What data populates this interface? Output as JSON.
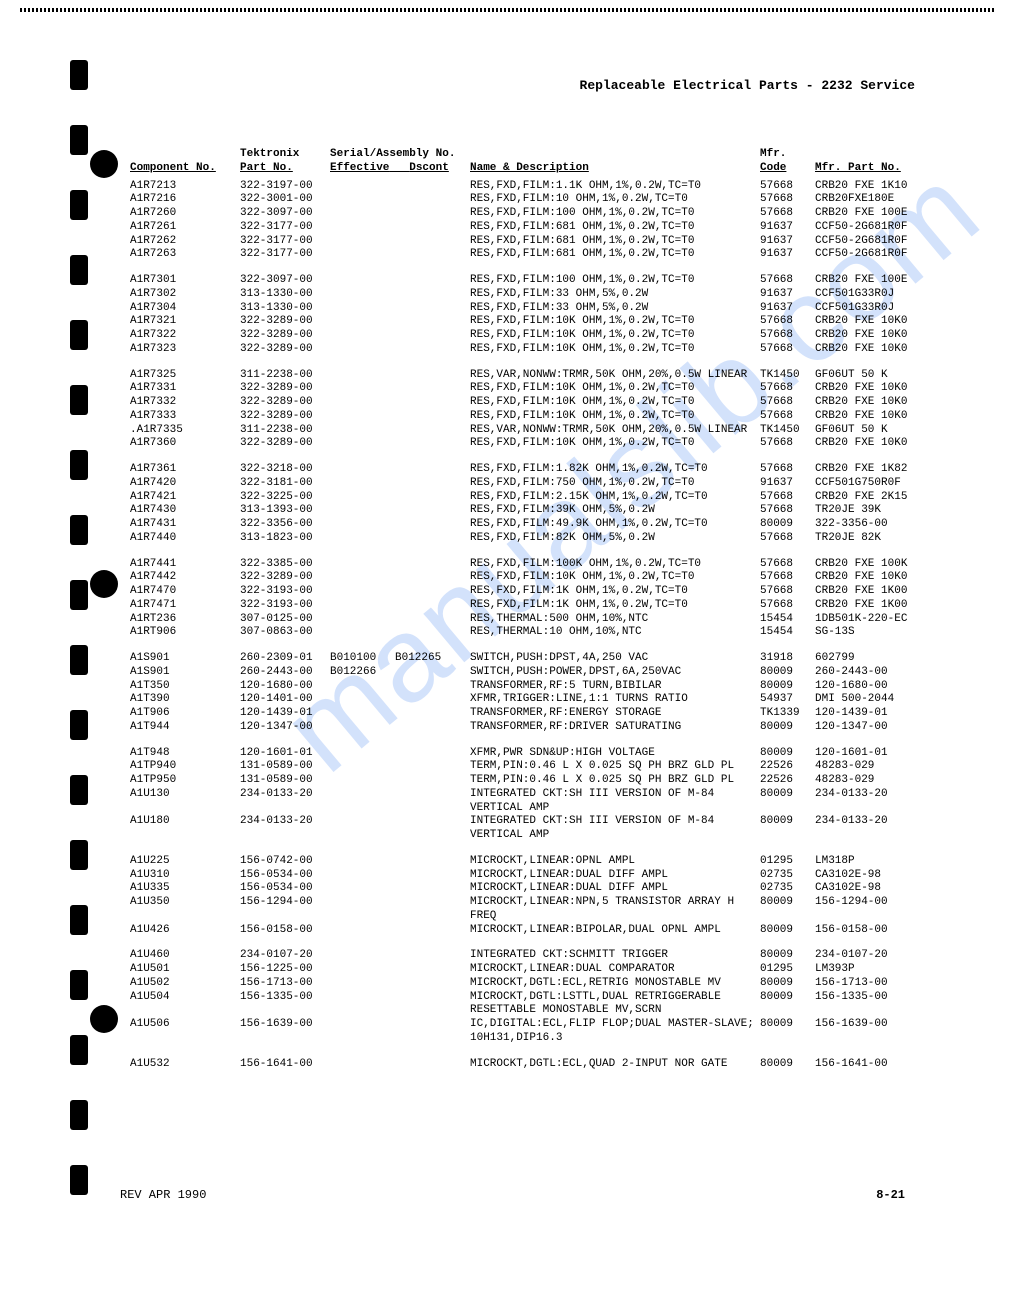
{
  "header": {
    "title": "Replaceable Electrical Parts - 2232 Service"
  },
  "columns": {
    "component": "Component No.",
    "tek_part_top": "Tektronix",
    "tek_part_bot": "Part No.",
    "serial_top": "Serial/Assembly No.",
    "serial_eff": "Effective",
    "serial_dsc": "Dscont",
    "name": "Name & Description",
    "mfr_top": "Mfr.",
    "mfr_bot": "Code",
    "mfr_part": "Mfr. Part No."
  },
  "groups": [
    [
      {
        "comp": "A1R7213",
        "part": "322-3197-00",
        "eff": "",
        "dsc": "",
        "desc": "RES,FXD,FILM:1.1K OHM,1%,0.2W,TC=T0",
        "code": "57668",
        "mpart": "CRB20 FXE 1K10"
      },
      {
        "comp": "A1R7216",
        "part": "322-3001-00",
        "eff": "",
        "dsc": "",
        "desc": "RES,FXD,FILM:10 OHM,1%,0.2W,TC=T0",
        "code": "57668",
        "mpart": "CRB20FXE180E"
      },
      {
        "comp": "A1R7260",
        "part": "322-3097-00",
        "eff": "",
        "dsc": "",
        "desc": "RES,FXD,FILM:100 OHM,1%,0.2W,TC=T0",
        "code": "57668",
        "mpart": "CRB20 FXE 100E"
      },
      {
        "comp": "A1R7261",
        "part": "322-3177-00",
        "eff": "",
        "dsc": "",
        "desc": "RES,FXD,FILM:681 OHM,1%,0.2W,TC=T0",
        "code": "91637",
        "mpart": "CCF50-2G681R0F"
      },
      {
        "comp": "A1R7262",
        "part": "322-3177-00",
        "eff": "",
        "dsc": "",
        "desc": "RES,FXD,FILM:681 OHM,1%,0.2W,TC=T0",
        "code": "91637",
        "mpart": "CCF50-2G681R0F"
      },
      {
        "comp": "A1R7263",
        "part": "322-3177-00",
        "eff": "",
        "dsc": "",
        "desc": "RES,FXD,FILM:681 OHM,1%,0.2W,TC=T0",
        "code": "91637",
        "mpart": "CCF50-2G681R0F"
      }
    ],
    [
      {
        "comp": "A1R7301",
        "part": "322-3097-00",
        "eff": "",
        "dsc": "",
        "desc": "RES,FXD,FILM:100 OHM,1%,0.2W,TC=T0",
        "code": "57668",
        "mpart": "CRB20 FXE 100E"
      },
      {
        "comp": "A1R7302",
        "part": "313-1330-00",
        "eff": "",
        "dsc": "",
        "desc": "RES,FXD,FILM:33 OHM,5%,0.2W",
        "code": "91637",
        "mpart": "CCF501G33R0J"
      },
      {
        "comp": "A1R7304",
        "part": "313-1330-00",
        "eff": "",
        "dsc": "",
        "desc": "RES,FXD,FILM:33 OHM,5%,0.2W",
        "code": "91637",
        "mpart": "CCF501G33R0J"
      },
      {
        "comp": "A1R7321",
        "part": "322-3289-00",
        "eff": "",
        "dsc": "",
        "desc": "RES,FXD,FILM:10K OHM,1%,0.2W,TC=T0",
        "code": "57668",
        "mpart": "CRB20 FXE 10K0"
      },
      {
        "comp": "A1R7322",
        "part": "322-3289-00",
        "eff": "",
        "dsc": "",
        "desc": "RES,FXD,FILM:10K OHM,1%,0.2W,TC=T0",
        "code": "57668",
        "mpart": "CRB20 FXE 10K0"
      },
      {
        "comp": "A1R7323",
        "part": "322-3289-00",
        "eff": "",
        "dsc": "",
        "desc": "RES,FXD,FILM:10K OHM,1%,0.2W,TC=T0",
        "code": "57668",
        "mpart": "CRB20 FXE 10K0"
      }
    ],
    [
      {
        "comp": "A1R7325",
        "part": "311-2238-00",
        "eff": "",
        "dsc": "",
        "desc": "RES,VAR,NONWW:TRMR,50K OHM,20%,0.5W LINEAR",
        "code": "TK1450",
        "mpart": "GF06UT 50 K"
      },
      {
        "comp": "A1R7331",
        "part": "322-3289-00",
        "eff": "",
        "dsc": "",
        "desc": "RES,FXD,FILM:10K OHM,1%,0.2W,TC=T0",
        "code": "57668",
        "mpart": "CRB20 FXE 10K0"
      },
      {
        "comp": "A1R7332",
        "part": "322-3289-00",
        "eff": "",
        "dsc": "",
        "desc": "RES,FXD,FILM:10K OHM,1%,0.2W,TC=T0",
        "code": "57668",
        "mpart": "CRB20 FXE 10K0"
      },
      {
        "comp": "A1R7333",
        "part": "322-3289-00",
        "eff": "",
        "dsc": "",
        "desc": "RES,FXD,FILM:10K OHM,1%,0.2W,TC=T0",
        "code": "57668",
        "mpart": "CRB20 FXE 10K0"
      },
      {
        "comp": ".A1R7335",
        "part": "311-2238-00",
        "eff": "",
        "dsc": "",
        "desc": "RES,VAR,NONWW:TRMR,50K OHM,20%,0.5W LINEAR",
        "code": "TK1450",
        "mpart": "GF06UT 50 K"
      },
      {
        "comp": "A1R7360",
        "part": "322-3289-00",
        "eff": "",
        "dsc": "",
        "desc": "RES,FXD,FILM:10K OHM,1%,0.2W,TC=T0",
        "code": "57668",
        "mpart": "CRB20 FXE 10K0"
      }
    ],
    [
      {
        "comp": "A1R7361",
        "part": "322-3218-00",
        "eff": "",
        "dsc": "",
        "desc": "RES,FXD,FILM:1.82K OHM,1%,0.2W,TC=T0",
        "code": "57668",
        "mpart": "CRB20 FXE 1K82"
      },
      {
        "comp": "A1R7420",
        "part": "322-3181-00",
        "eff": "",
        "dsc": "",
        "desc": "RES,FXD,FILM:750 OHM,1%,0.2W,TC=T0",
        "code": "91637",
        "mpart": "CCF501G750R0F"
      },
      {
        "comp": "A1R7421",
        "part": "322-3225-00",
        "eff": "",
        "dsc": "",
        "desc": "RES,FXD,FILM:2.15K OHM,1%,0.2W,TC=T0",
        "code": "57668",
        "mpart": "CRB20 FXE 2K15"
      },
      {
        "comp": "A1R7430",
        "part": "313-1393-00",
        "eff": "",
        "dsc": "",
        "desc": "RES,FXD,FILM:39K OHM,5%,0.2W",
        "code": "57668",
        "mpart": "TR20JE 39K"
      },
      {
        "comp": "A1R7431",
        "part": "322-3356-00",
        "eff": "",
        "dsc": "",
        "desc": "RES,FXD,FILM:49.9K OHM,1%,0.2W,TC=T0",
        "code": "80009",
        "mpart": "322-3356-00"
      },
      {
        "comp": "A1R7440",
        "part": "313-1823-00",
        "eff": "",
        "dsc": "",
        "desc": "RES,FXD,FILM:82K OHM,5%,0.2W",
        "code": "57668",
        "mpart": "TR20JE 82K"
      }
    ],
    [
      {
        "comp": "A1R7441",
        "part": "322-3385-00",
        "eff": "",
        "dsc": "",
        "desc": "RES,FXD,FILM:100K OHM,1%,0.2W,TC=T0",
        "code": "57668",
        "mpart": "CRB20 FXE 100K"
      },
      {
        "comp": "A1R7442",
        "part": "322-3289-00",
        "eff": "",
        "dsc": "",
        "desc": "RES,FXD,FILM:10K OHM,1%,0.2W,TC=T0",
        "code": "57668",
        "mpart": "CRB20 FXE 10K0"
      },
      {
        "comp": "A1R7470",
        "part": "322-3193-00",
        "eff": "",
        "dsc": "",
        "desc": "RES,FXD,FILM:1K OHM,1%,0.2W,TC=T0",
        "code": "57668",
        "mpart": "CRB20 FXE 1K00"
      },
      {
        "comp": "A1R7471",
        "part": "322-3193-00",
        "eff": "",
        "dsc": "",
        "desc": "RES,FXD,FILM:1K OHM,1%,0.2W,TC=T0",
        "code": "57668",
        "mpart": "CRB20 FXE 1K00"
      },
      {
        "comp": "A1RT236",
        "part": "307-0125-00",
        "eff": "",
        "dsc": "",
        "desc": "RES,THERMAL:500 OHM,10%,NTC",
        "code": "15454",
        "mpart": "1DB501K-220-EC"
      },
      {
        "comp": "A1RT906",
        "part": "307-0863-00",
        "eff": "",
        "dsc": "",
        "desc": "RES,THERMAL:10 OHM,10%,NTC",
        "code": "15454",
        "mpart": "SG-13S"
      }
    ],
    [
      {
        "comp": "A1S901",
        "part": "260-2309-01",
        "eff": "B010100",
        "dsc": "B012265",
        "desc": "SWITCH,PUSH:DPST,4A,250 VAC",
        "code": "31918",
        "mpart": "602799"
      },
      {
        "comp": "A1S901",
        "part": "260-2443-00",
        "eff": "B012266",
        "dsc": "",
        "desc": "SWITCH,PUSH:POWER,DPST,6A,250VAC",
        "code": "80009",
        "mpart": "260-2443-00"
      },
      {
        "comp": "A1T350",
        "part": "120-1680-00",
        "eff": "",
        "dsc": "",
        "desc": "TRANSFORMER,RF:5 TURN,BIBILAR",
        "code": "80009",
        "mpart": "120-1680-00"
      },
      {
        "comp": "A1T390",
        "part": "120-1401-00",
        "eff": "",
        "dsc": "",
        "desc": "XFMR,TRIGGER:LINE,1:1 TURNS RATIO",
        "code": "54937",
        "mpart": "DMI 500-2044"
      },
      {
        "comp": "A1T906",
        "part": "120-1439-01",
        "eff": "",
        "dsc": "",
        "desc": "TRANSFORMER,RF:ENERGY STORAGE",
        "code": "TK1339",
        "mpart": "120-1439-01"
      },
      {
        "comp": "A1T944",
        "part": "120-1347-00",
        "eff": "",
        "dsc": "",
        "desc": "TRANSFORMER,RF:DRIVER SATURATING",
        "code": "80009",
        "mpart": "120-1347-00"
      }
    ],
    [
      {
        "comp": "A1T948",
        "part": "120-1601-01",
        "eff": "",
        "dsc": "",
        "desc": "XFMR,PWR SDN&UP:HIGH VOLTAGE",
        "code": "80009",
        "mpart": "120-1601-01"
      },
      {
        "comp": "A1TP940",
        "part": "131-0589-00",
        "eff": "",
        "dsc": "",
        "desc": "TERM,PIN:0.46 L X 0.025 SQ PH BRZ GLD PL",
        "code": "22526",
        "mpart": "48283-029"
      },
      {
        "comp": "A1TP950",
        "part": "131-0589-00",
        "eff": "",
        "dsc": "",
        "desc": "TERM,PIN:0.46 L X 0.025 SQ PH BRZ GLD PL",
        "code": "22526",
        "mpart": "48283-029"
      },
      {
        "comp": "A1U130",
        "part": "234-0133-20",
        "eff": "",
        "dsc": "",
        "desc": "INTEGRATED CKT:SH III VERSION OF M-84 VERTICAL AMP",
        "code": "80009",
        "mpart": "234-0133-20"
      },
      {
        "comp": "A1U180",
        "part": "234-0133-20",
        "eff": "",
        "dsc": "",
        "desc": "INTEGRATED CKT:SH III VERSION OF M-84 VERTICAL AMP",
        "code": "80009",
        "mpart": "234-0133-20"
      }
    ],
    [
      {
        "comp": "A1U225",
        "part": "156-0742-00",
        "eff": "",
        "dsc": "",
        "desc": "MICROCKT,LINEAR:OPNL AMPL",
        "code": "01295",
        "mpart": "LM318P"
      },
      {
        "comp": "A1U310",
        "part": "156-0534-00",
        "eff": "",
        "dsc": "",
        "desc": "MICROCKT,LINEAR:DUAL DIFF AMPL",
        "code": "02735",
        "mpart": "CA3102E-98"
      },
      {
        "comp": "A1U335",
        "part": "156-0534-00",
        "eff": "",
        "dsc": "",
        "desc": "MICROCKT,LINEAR:DUAL DIFF AMPL",
        "code": "02735",
        "mpart": "CA3102E-98"
      },
      {
        "comp": "A1U350",
        "part": "156-1294-00",
        "eff": "",
        "dsc": "",
        "desc": "MICROCKT,LINEAR:NPN,5 TRANSISTOR ARRAY H FREQ",
        "code": "80009",
        "mpart": "156-1294-00"
      },
      {
        "comp": "A1U426",
        "part": "156-0158-00",
        "eff": "",
        "dsc": "",
        "desc": "MICROCKT,LINEAR:BIPOLAR,DUAL OPNL AMPL",
        "code": "80009",
        "mpart": "156-0158-00"
      }
    ],
    [
      {
        "comp": "A1U460",
        "part": "234-0107-20",
        "eff": "",
        "dsc": "",
        "desc": "INTEGRATED CKT:SCHMITT TRIGGER",
        "code": "80009",
        "mpart": "234-0107-20"
      },
      {
        "comp": "A1U501",
        "part": "156-1225-00",
        "eff": "",
        "dsc": "",
        "desc": "MICROCKT,LINEAR:DUAL COMPARATOR",
        "code": "01295",
        "mpart": "LM393P"
      },
      {
        "comp": "A1U502",
        "part": "156-1713-00",
        "eff": "",
        "dsc": "",
        "desc": "MICROCKT,DGTL:ECL,RETRIG MONOSTABLE MV",
        "code": "80009",
        "mpart": "156-1713-00"
      },
      {
        "comp": "A1U504",
        "part": "156-1335-00",
        "eff": "",
        "dsc": "",
        "desc": "MICROCKT,DGTL:LSTTL,DUAL RETRIGGERABLE RESETTABLE MONOSTABLE MV,SCRN",
        "code": "80009",
        "mpart": "156-1335-00"
      },
      {
        "comp": "A1U506",
        "part": "156-1639-00",
        "eff": "",
        "dsc": "",
        "desc": "IC,DIGITAL:ECL,FLIP FLOP;DUAL MASTER-SLAVE; 10H131,DIP16.3",
        "code": "80009",
        "mpart": "156-1639-00"
      }
    ],
    [
      {
        "comp": "A1U532",
        "part": "156-1641-00",
        "eff": "",
        "dsc": "",
        "desc": "MICROCKT,DGTL:ECL,QUAD 2-INPUT NOR GATE",
        "code": "80009",
        "mpart": "156-1641-00"
      }
    ]
  ],
  "footer": {
    "rev": "REV APR 1990",
    "page": "8-21"
  },
  "watermark": "manualslib.com"
}
